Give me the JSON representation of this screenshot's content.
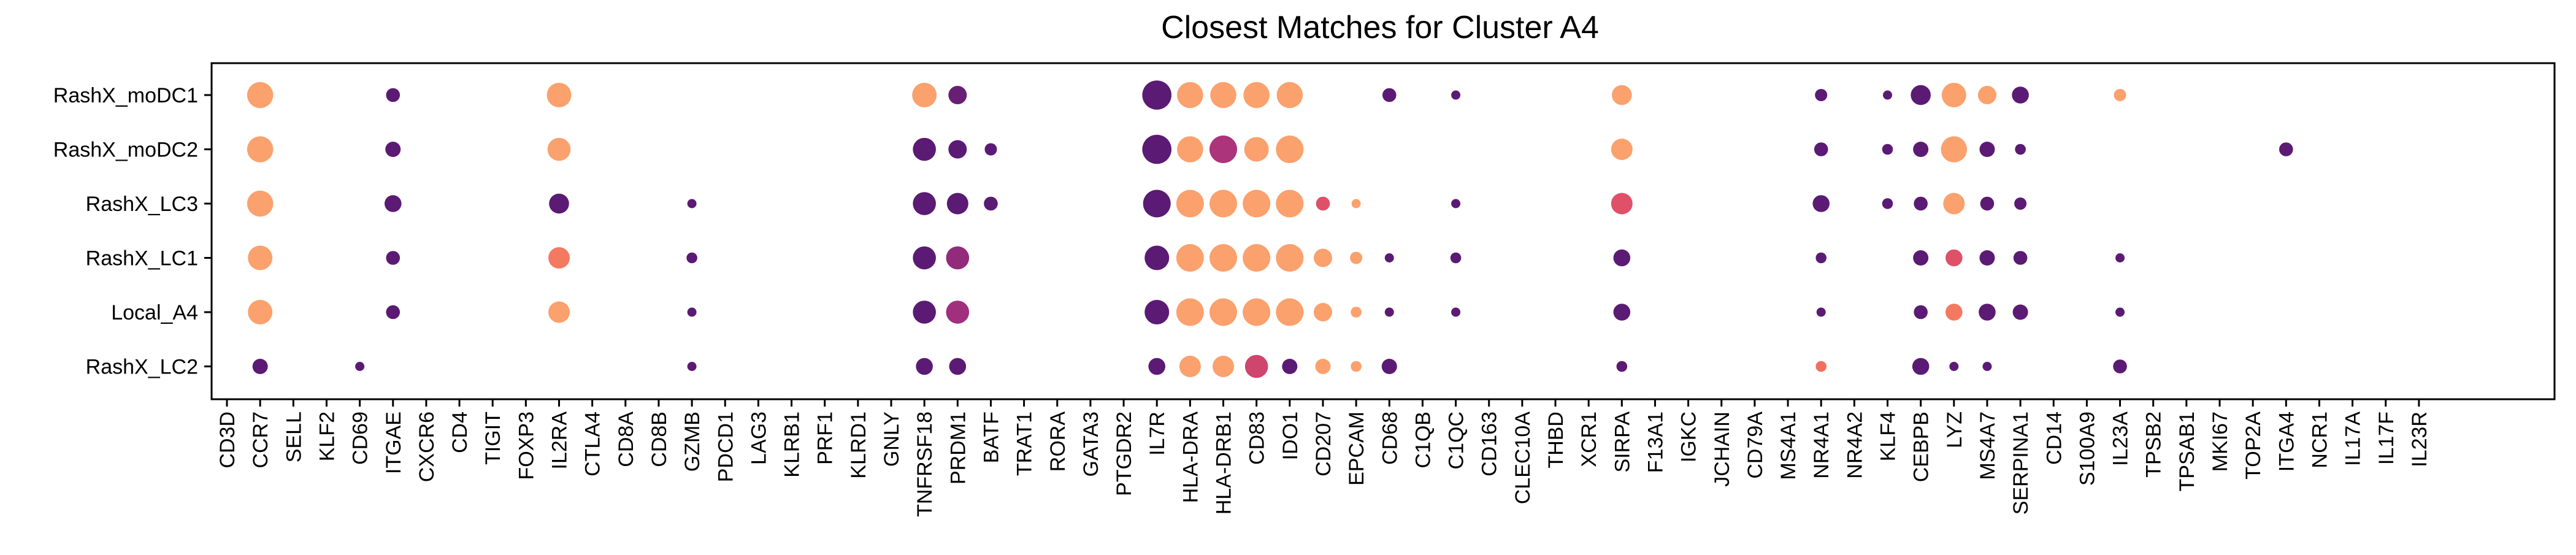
{
  "chart_data": {
    "type": "dot_plot",
    "title": "Closest Matches for Cluster A4",
    "rows": [
      "RashX_moDC1",
      "RashX_moDC2",
      "RashX_LC3",
      "RashX_LC1",
      "Local_A4",
      "RashX_LC2"
    ],
    "columns": [
      "CD3D",
      "CCR7",
      "SELL",
      "KLF2",
      "CD69",
      "ITGAE",
      "CXCR6",
      "CD4",
      "TIGIT",
      "FOXP3",
      "IL2RA",
      "CTLA4",
      "CD8A",
      "CD8B",
      "GZMB",
      "PDCD1",
      "LAG3",
      "KLRB1",
      "PRF1",
      "KLRD1",
      "GNLY",
      "TNFRSF18",
      "PRDM1",
      "BATF",
      "TRAT1",
      "RORA",
      "GATA3",
      "PTGDR2",
      "IL7R",
      "HLA-DRA",
      "HLA-DRB1",
      "CD83",
      "IDO1",
      "CD207",
      "EPCAM",
      "CD68",
      "C1QB",
      "C1QC",
      "CD163",
      "CLEC10A",
      "THBD",
      "XCR1",
      "SIRPA",
      "F13A1",
      "IGKC",
      "JCHAIN",
      "CD79A",
      "MS4A1",
      "NR4A1",
      "NR4A2",
      "KLF4",
      "CEBPB",
      "LYZ",
      "MS4A7",
      "SERPINA1",
      "CD14",
      "S100A9",
      "IL23A",
      "TPSB2",
      "TPSAB1",
      "MKI67",
      "TOP2A",
      "ITGA4",
      "NCR1",
      "IL17A",
      "IL17F",
      "IL23R"
    ],
    "size_scale": "relative dot size, 0 = no dot, 1 = largest",
    "color_scale": [
      "#5b1a73",
      "#a02f7e",
      "#d94a6a",
      "#f26f5e",
      "#fba16d"
    ],
    "color_scale_note": "relative value 0 (dark purple) to 1 (light orange)",
    "points": [
      {
        "row": "RashX_moDC1",
        "gene": "CCR7",
        "size": 0.85,
        "color": 1.0
      },
      {
        "row": "RashX_moDC1",
        "gene": "ITGAE",
        "size": 0.45,
        "color": 0.0
      },
      {
        "row": "RashX_moDC1",
        "gene": "IL2RA",
        "size": 0.8,
        "color": 1.0
      },
      {
        "row": "RashX_moDC1",
        "gene": "TNFRSF18",
        "size": 0.8,
        "color": 1.0
      },
      {
        "row": "RashX_moDC1",
        "gene": "PRDM1",
        "size": 0.6,
        "color": 0.05
      },
      {
        "row": "RashX_moDC1",
        "gene": "IL7R",
        "size": 0.95,
        "color": 0.0
      },
      {
        "row": "RashX_moDC1",
        "gene": "HLA-DRA",
        "size": 0.85,
        "color": 1.0
      },
      {
        "row": "RashX_moDC1",
        "gene": "HLA-DRB1",
        "size": 0.85,
        "color": 1.0
      },
      {
        "row": "RashX_moDC1",
        "gene": "CD83",
        "size": 0.85,
        "color": 1.0
      },
      {
        "row": "RashX_moDC1",
        "gene": "IDO1",
        "size": 0.85,
        "color": 1.0
      },
      {
        "row": "RashX_moDC1",
        "gene": "CD68",
        "size": 0.45,
        "color": 0.0
      },
      {
        "row": "RashX_moDC1",
        "gene": "C1QC",
        "size": 0.3,
        "color": 0.0
      },
      {
        "row": "RashX_moDC1",
        "gene": "SIRPA",
        "size": 0.65,
        "color": 1.0
      },
      {
        "row": "RashX_moDC1",
        "gene": "NR4A1",
        "size": 0.4,
        "color": 0.0
      },
      {
        "row": "RashX_moDC1",
        "gene": "KLF4",
        "size": 0.3,
        "color": 0.0
      },
      {
        "row": "RashX_moDC1",
        "gene": "CEBPB",
        "size": 0.65,
        "color": 0.0
      },
      {
        "row": "RashX_moDC1",
        "gene": "LYZ",
        "size": 0.8,
        "color": 1.0
      },
      {
        "row": "RashX_moDC1",
        "gene": "MS4A7",
        "size": 0.6,
        "color": 1.0
      },
      {
        "row": "RashX_moDC1",
        "gene": "SERPINA1",
        "size": 0.55,
        "color": 0.0
      },
      {
        "row": "RashX_moDC1",
        "gene": "IL23A",
        "size": 0.4,
        "color": 1.0
      },
      {
        "row": "RashX_moDC2",
        "gene": "CCR7",
        "size": 0.85,
        "color": 1.0
      },
      {
        "row": "RashX_moDC2",
        "gene": "ITGAE",
        "size": 0.5,
        "color": 0.0
      },
      {
        "row": "RashX_moDC2",
        "gene": "IL2RA",
        "size": 0.75,
        "color": 1.0
      },
      {
        "row": "RashX_moDC2",
        "gene": "TNFRSF18",
        "size": 0.75,
        "color": 0.0
      },
      {
        "row": "RashX_moDC2",
        "gene": "PRDM1",
        "size": 0.6,
        "color": 0.0
      },
      {
        "row": "RashX_moDC2",
        "gene": "BATF",
        "size": 0.4,
        "color": 0.0
      },
      {
        "row": "RashX_moDC2",
        "gene": "IL7R",
        "size": 0.95,
        "color": 0.0
      },
      {
        "row": "RashX_moDC2",
        "gene": "HLA-DRA",
        "size": 0.85,
        "color": 1.0
      },
      {
        "row": "RashX_moDC2",
        "gene": "HLA-DRB1",
        "size": 0.9,
        "color": 0.3
      },
      {
        "row": "RashX_moDC2",
        "gene": "CD83",
        "size": 0.8,
        "color": 1.0
      },
      {
        "row": "RashX_moDC2",
        "gene": "IDO1",
        "size": 0.9,
        "color": 1.0
      },
      {
        "row": "RashX_moDC2",
        "gene": "SIRPA",
        "size": 0.7,
        "color": 1.0
      },
      {
        "row": "RashX_moDC2",
        "gene": "NR4A1",
        "size": 0.45,
        "color": 0.0
      },
      {
        "row": "RashX_moDC2",
        "gene": "KLF4",
        "size": 0.35,
        "color": 0.0
      },
      {
        "row": "RashX_moDC2",
        "gene": "CEBPB",
        "size": 0.5,
        "color": 0.0
      },
      {
        "row": "RashX_moDC2",
        "gene": "LYZ",
        "size": 0.85,
        "color": 1.0
      },
      {
        "row": "RashX_moDC2",
        "gene": "MS4A7",
        "size": 0.5,
        "color": 0.0
      },
      {
        "row": "RashX_moDC2",
        "gene": "SERPINA1",
        "size": 0.35,
        "color": 0.0
      },
      {
        "row": "RashX_moDC2",
        "gene": "ITGA4",
        "size": 0.45,
        "color": 0.0
      },
      {
        "row": "RashX_LC3",
        "gene": "CCR7",
        "size": 0.85,
        "color": 1.0
      },
      {
        "row": "RashX_LC3",
        "gene": "ITGAE",
        "size": 0.55,
        "color": 0.0
      },
      {
        "row": "RashX_LC3",
        "gene": "IL2RA",
        "size": 0.65,
        "color": 0.0
      },
      {
        "row": "RashX_LC3",
        "gene": "GZMB",
        "size": 0.3,
        "color": 0.0
      },
      {
        "row": "RashX_LC3",
        "gene": "TNFRSF18",
        "size": 0.75,
        "color": 0.0
      },
      {
        "row": "RashX_LC3",
        "gene": "PRDM1",
        "size": 0.7,
        "color": 0.0
      },
      {
        "row": "RashX_LC3",
        "gene": "BATF",
        "size": 0.45,
        "color": 0.0
      },
      {
        "row": "RashX_LC3",
        "gene": "IL7R",
        "size": 0.9,
        "color": 0.0
      },
      {
        "row": "RashX_LC3",
        "gene": "HLA-DRA",
        "size": 0.9,
        "color": 1.0
      },
      {
        "row": "RashX_LC3",
        "gene": "HLA-DRB1",
        "size": 0.9,
        "color": 1.0
      },
      {
        "row": "RashX_LC3",
        "gene": "CD83",
        "size": 0.9,
        "color": 1.0
      },
      {
        "row": "RashX_LC3",
        "gene": "IDO1",
        "size": 0.9,
        "color": 1.0
      },
      {
        "row": "RashX_LC3",
        "gene": "CD207",
        "size": 0.45,
        "color": 0.55
      },
      {
        "row": "RashX_LC3",
        "gene": "EPCAM",
        "size": 0.3,
        "color": 1.0
      },
      {
        "row": "RashX_LC3",
        "gene": "C1QC",
        "size": 0.3,
        "color": 0.0
      },
      {
        "row": "RashX_LC3",
        "gene": "SIRPA",
        "size": 0.7,
        "color": 0.55
      },
      {
        "row": "RashX_LC3",
        "gene": "NR4A1",
        "size": 0.55,
        "color": 0.0
      },
      {
        "row": "RashX_LC3",
        "gene": "KLF4",
        "size": 0.35,
        "color": 0.0
      },
      {
        "row": "RashX_LC3",
        "gene": "CEBPB",
        "size": 0.45,
        "color": 0.0
      },
      {
        "row": "RashX_LC3",
        "gene": "LYZ",
        "size": 0.7,
        "color": 1.0
      },
      {
        "row": "RashX_LC3",
        "gene": "MS4A7",
        "size": 0.45,
        "color": 0.0
      },
      {
        "row": "RashX_LC3",
        "gene": "SERPINA1",
        "size": 0.4,
        "color": 0.0
      },
      {
        "row": "RashX_LC1",
        "gene": "CCR7",
        "size": 0.8,
        "color": 1.0
      },
      {
        "row": "RashX_LC1",
        "gene": "ITGAE",
        "size": 0.45,
        "color": 0.0
      },
      {
        "row": "RashX_LC1",
        "gene": "IL2RA",
        "size": 0.7,
        "color": 0.8
      },
      {
        "row": "RashX_LC1",
        "gene": "GZMB",
        "size": 0.35,
        "color": 0.0
      },
      {
        "row": "RashX_LC1",
        "gene": "TNFRSF18",
        "size": 0.75,
        "color": 0.0
      },
      {
        "row": "RashX_LC1",
        "gene": "PRDM1",
        "size": 0.75,
        "color": 0.2
      },
      {
        "row": "RashX_LC1",
        "gene": "IL7R",
        "size": 0.8,
        "color": 0.0
      },
      {
        "row": "RashX_LC1",
        "gene": "HLA-DRA",
        "size": 0.9,
        "color": 1.0
      },
      {
        "row": "RashX_LC1",
        "gene": "HLA-DRB1",
        "size": 0.9,
        "color": 1.0
      },
      {
        "row": "RashX_LC1",
        "gene": "CD83",
        "size": 0.9,
        "color": 1.0
      },
      {
        "row": "RashX_LC1",
        "gene": "IDO1",
        "size": 0.9,
        "color": 1.0
      },
      {
        "row": "RashX_LC1",
        "gene": "CD207",
        "size": 0.6,
        "color": 1.0
      },
      {
        "row": "RashX_LC1",
        "gene": "EPCAM",
        "size": 0.4,
        "color": 1.0
      },
      {
        "row": "RashX_LC1",
        "gene": "CD68",
        "size": 0.3,
        "color": 0.0
      },
      {
        "row": "RashX_LC1",
        "gene": "C1QC",
        "size": 0.35,
        "color": 0.0
      },
      {
        "row": "RashX_LC1",
        "gene": "SIRPA",
        "size": 0.55,
        "color": 0.0
      },
      {
        "row": "RashX_LC1",
        "gene": "NR4A1",
        "size": 0.35,
        "color": 0.0
      },
      {
        "row": "RashX_LC1",
        "gene": "CEBPB",
        "size": 0.5,
        "color": 0.0
      },
      {
        "row": "RashX_LC1",
        "gene": "LYZ",
        "size": 0.55,
        "color": 0.55
      },
      {
        "row": "RashX_LC1",
        "gene": "MS4A7",
        "size": 0.5,
        "color": 0.0
      },
      {
        "row": "RashX_LC1",
        "gene": "SERPINA1",
        "size": 0.45,
        "color": 0.0
      },
      {
        "row": "RashX_LC1",
        "gene": "IL23A",
        "size": 0.3,
        "color": 0.0
      },
      {
        "row": "Local_A4",
        "gene": "CCR7",
        "size": 0.8,
        "color": 1.0
      },
      {
        "row": "Local_A4",
        "gene": "ITGAE",
        "size": 0.45,
        "color": 0.0
      },
      {
        "row": "Local_A4",
        "gene": "IL2RA",
        "size": 0.7,
        "color": 1.0
      },
      {
        "row": "Local_A4",
        "gene": "GZMB",
        "size": 0.3,
        "color": 0.0
      },
      {
        "row": "Local_A4",
        "gene": "TNFRSF18",
        "size": 0.75,
        "color": 0.0
      },
      {
        "row": "Local_A4",
        "gene": "PRDM1",
        "size": 0.75,
        "color": 0.25
      },
      {
        "row": "Local_A4",
        "gene": "IL7R",
        "size": 0.8,
        "color": 0.0
      },
      {
        "row": "Local_A4",
        "gene": "HLA-DRA",
        "size": 0.9,
        "color": 1.0
      },
      {
        "row": "Local_A4",
        "gene": "HLA-DRB1",
        "size": 0.9,
        "color": 1.0
      },
      {
        "row": "Local_A4",
        "gene": "CD83",
        "size": 0.9,
        "color": 1.0
      },
      {
        "row": "Local_A4",
        "gene": "IDO1",
        "size": 0.9,
        "color": 1.0
      },
      {
        "row": "Local_A4",
        "gene": "CD207",
        "size": 0.6,
        "color": 1.0
      },
      {
        "row": "Local_A4",
        "gene": "EPCAM",
        "size": 0.35,
        "color": 1.0
      },
      {
        "row": "Local_A4",
        "gene": "CD68",
        "size": 0.3,
        "color": 0.0
      },
      {
        "row": "Local_A4",
        "gene": "C1QC",
        "size": 0.3,
        "color": 0.0
      },
      {
        "row": "Local_A4",
        "gene": "SIRPA",
        "size": 0.55,
        "color": 0.0
      },
      {
        "row": "Local_A4",
        "gene": "NR4A1",
        "size": 0.3,
        "color": 0.0
      },
      {
        "row": "Local_A4",
        "gene": "CEBPB",
        "size": 0.45,
        "color": 0.0
      },
      {
        "row": "Local_A4",
        "gene": "LYZ",
        "size": 0.55,
        "color": 0.8
      },
      {
        "row": "Local_A4",
        "gene": "MS4A7",
        "size": 0.55,
        "color": 0.0
      },
      {
        "row": "Local_A4",
        "gene": "SERPINA1",
        "size": 0.5,
        "color": 0.0
      },
      {
        "row": "Local_A4",
        "gene": "IL23A",
        "size": 0.3,
        "color": 0.0
      },
      {
        "row": "RashX_LC2",
        "gene": "CCR7",
        "size": 0.5,
        "color": 0.0
      },
      {
        "row": "RashX_LC2",
        "gene": "CD69",
        "size": 0.3,
        "color": 0.0
      },
      {
        "row": "RashX_LC2",
        "gene": "GZMB",
        "size": 0.3,
        "color": 0.0
      },
      {
        "row": "RashX_LC2",
        "gene": "TNFRSF18",
        "size": 0.55,
        "color": 0.0
      },
      {
        "row": "RashX_LC2",
        "gene": "PRDM1",
        "size": 0.55,
        "color": 0.0
      },
      {
        "row": "RashX_LC2",
        "gene": "IL7R",
        "size": 0.55,
        "color": 0.0
      },
      {
        "row": "RashX_LC2",
        "gene": "HLA-DRA",
        "size": 0.7,
        "color": 1.0
      },
      {
        "row": "RashX_LC2",
        "gene": "HLA-DRB1",
        "size": 0.7,
        "color": 1.0
      },
      {
        "row": "RashX_LC2",
        "gene": "CD83",
        "size": 0.75,
        "color": 0.45
      },
      {
        "row": "RashX_LC2",
        "gene": "IDO1",
        "size": 0.5,
        "color": 0.0
      },
      {
        "row": "RashX_LC2",
        "gene": "CD207",
        "size": 0.5,
        "color": 1.0
      },
      {
        "row": "RashX_LC2",
        "gene": "EPCAM",
        "size": 0.35,
        "color": 1.0
      },
      {
        "row": "RashX_LC2",
        "gene": "CD68",
        "size": 0.5,
        "color": 0.0
      },
      {
        "row": "RashX_LC2",
        "gene": "SIRPA",
        "size": 0.35,
        "color": 0.0
      },
      {
        "row": "RashX_LC2",
        "gene": "NR4A1",
        "size": 0.35,
        "color": 0.75
      },
      {
        "row": "RashX_LC2",
        "gene": "CEBPB",
        "size": 0.55,
        "color": 0.0
      },
      {
        "row": "RashX_LC2",
        "gene": "LYZ",
        "size": 0.3,
        "color": 0.0
      },
      {
        "row": "RashX_LC2",
        "gene": "MS4A7",
        "size": 0.3,
        "color": 0.0
      },
      {
        "row": "RashX_LC2",
        "gene": "IL23A",
        "size": 0.45,
        "color": 0.0
      }
    ]
  }
}
